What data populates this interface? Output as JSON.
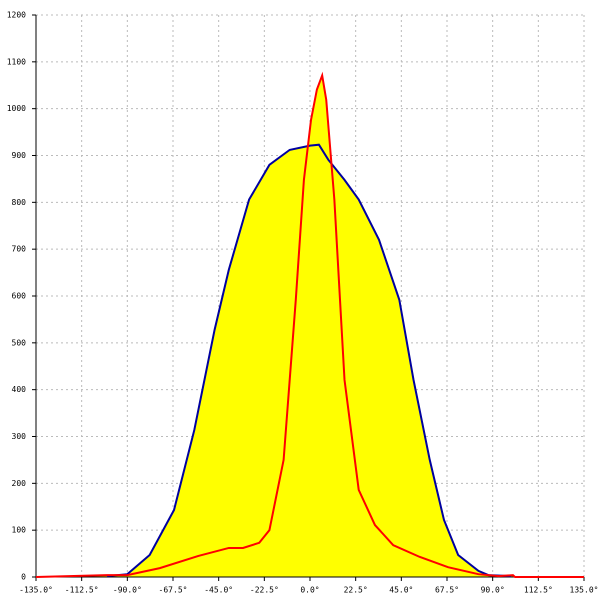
{
  "chart_data": {
    "type": "line",
    "xlim": [
      -135,
      135
    ],
    "ylim": [
      0,
      1200
    ],
    "xticks": [
      {
        "value": -135,
        "label": "-135.0°"
      },
      {
        "value": -112.5,
        "label": "-112.5°"
      },
      {
        "value": -90,
        "label": "-90.0°"
      },
      {
        "value": -67.5,
        "label": "-67.5°"
      },
      {
        "value": -45,
        "label": "-45.0°"
      },
      {
        "value": -22.5,
        "label": "-22.5°"
      },
      {
        "value": 0,
        "label": "0.0°"
      },
      {
        "value": 22.5,
        "label": "22.5°"
      },
      {
        "value": 45,
        "label": "45.0°"
      },
      {
        "value": 67.5,
        "label": "67.5°"
      },
      {
        "value": 90,
        "label": "90.0°"
      },
      {
        "value": 112.5,
        "label": "112.5°"
      },
      {
        "value": 135,
        "label": "135.0°"
      }
    ],
    "yticks": [
      0,
      100,
      200,
      300,
      400,
      500,
      600,
      700,
      800,
      900,
      1000,
      1100,
      1200
    ],
    "grid": true,
    "series": [
      {
        "color": "#0000a0",
        "fill": "#ffff00",
        "x": [
          -100,
          -90,
          -79,
          -67,
          -57,
          -47,
          -40,
          -30,
          -20,
          -10,
          0,
          4.4,
          9,
          17,
          24,
          34,
          44,
          51,
          59,
          66,
          73,
          83,
          88,
          99
        ],
        "values": [
          2,
          6,
          47,
          143,
          314,
          528,
          656,
          806,
          880,
          912,
          921,
          923,
          891,
          848,
          806,
          720,
          592,
          421,
          250,
          122,
          47,
          13,
          4,
          2
        ]
      },
      {
        "color": "#ff0000",
        "fill": "#ffff00",
        "x": [
          -135,
          -100,
          -90,
          -74,
          -55,
          -40,
          -33,
          -25,
          -20,
          -13,
          -7,
          -3,
          0.5,
          3.4,
          6,
          8,
          12,
          17,
          24,
          32,
          41,
          54,
          68,
          83,
          93,
          100,
          101,
          135
        ],
        "values": [
          0,
          4,
          4,
          19,
          45,
          62,
          62,
          73,
          100,
          250,
          592,
          848,
          976,
          1041,
          1071,
          1019,
          806,
          421,
          186,
          111,
          68,
          43,
          21,
          6,
          2,
          4,
          0,
          0
        ]
      }
    ]
  }
}
